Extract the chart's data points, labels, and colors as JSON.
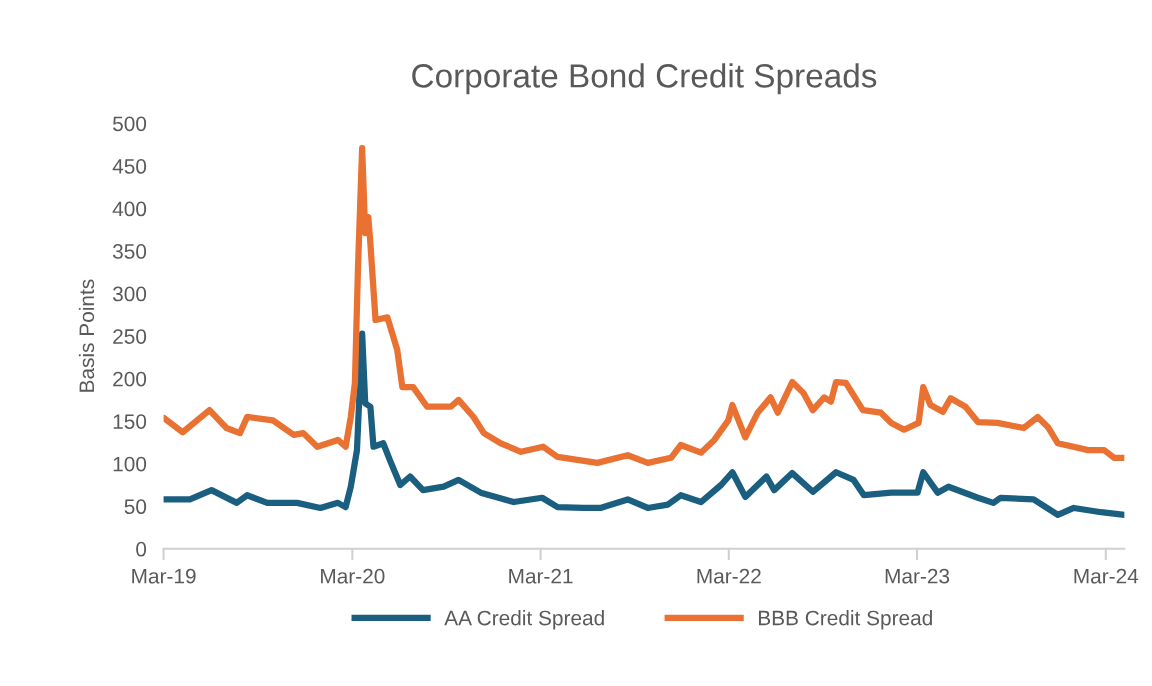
{
  "chart_data": {
    "type": "line",
    "title": "Corporate Bond Credit Spreads",
    "ylabel": "Basis Points",
    "xlim": [
      "2019-03-01",
      "2024-04-06"
    ],
    "ylim": [
      0,
      500
    ],
    "xticks": [
      {
        "value": "2019-03-01",
        "label": "Mar-19"
      },
      {
        "value": "2020-03-01",
        "label": "Mar-20"
      },
      {
        "value": "2021-03-01",
        "label": "Mar-21"
      },
      {
        "value": "2022-03-01",
        "label": "Mar-22"
      },
      {
        "value": "2023-03-01",
        "label": "Mar-23"
      },
      {
        "value": "2024-03-01",
        "label": "Mar-24"
      }
    ],
    "yticks": [
      0,
      50,
      100,
      150,
      200,
      250,
      300,
      350,
      400,
      450,
      500
    ],
    "grid": false,
    "legend": "bottom",
    "marker": "none",
    "line_style": "solid",
    "series": [
      {
        "name": "AA Credit Spread",
        "color": "#1a5e80",
        "x": [
          "2019-03-01",
          "2019-04-21",
          "2019-06-02",
          "2019-07-21",
          "2019-08-10",
          "2019-09-18",
          "2019-11-15",
          "2019-12-30",
          "2020-02-02",
          "2020-02-17",
          "2020-02-27",
          "2020-03-10",
          "2020-03-20",
          "2020-03-26",
          "2020-04-05",
          "2020-04-11",
          "2020-04-30",
          "2020-05-13",
          "2020-06-02",
          "2020-06-21",
          "2020-07-16",
          "2020-08-25",
          "2020-09-23",
          "2020-11-05",
          "2021-01-08",
          "2021-03-04",
          "2021-04-03",
          "2021-05-23",
          "2021-06-25",
          "2021-08-17",
          "2021-09-25",
          "2021-11-03",
          "2021-11-28",
          "2022-01-06",
          "2022-02-14",
          "2022-03-08",
          "2022-04-02",
          "2022-05-13",
          "2022-05-28",
          "2022-07-02",
          "2022-08-11",
          "2022-09-25",
          "2022-10-29",
          "2022-11-18",
          "2023-01-10",
          "2023-03-02",
          "2023-03-13",
          "2023-04-10",
          "2023-05-01",
          "2023-06-27",
          "2023-07-27",
          "2023-08-10",
          "2023-10-13",
          "2023-11-29",
          "2023-12-30",
          "2024-02-21",
          "2024-04-06"
        ],
        "values": [
          58,
          58,
          69,
          54,
          63,
          54,
          54,
          48,
          54,
          49,
          73,
          116,
          253,
          171,
          167,
          120,
          124,
          104,
          75,
          85,
          69,
          73,
          81,
          66,
          55,
          60,
          49,
          48,
          48,
          58,
          48,
          52,
          63,
          55,
          75,
          90,
          61,
          85,
          69,
          89,
          67,
          90,
          81,
          63,
          66,
          66,
          90,
          66,
          73,
          60,
          54,
          60,
          58,
          40,
          48,
          43,
          40
        ]
      },
      {
        "name": "BBB Credit Spread",
        "color": "#e97132",
        "x": [
          "2019-03-01",
          "2019-04-07",
          "2019-05-29",
          "2019-07-01",
          "2019-07-27",
          "2019-08-10",
          "2019-09-29",
          "2019-11-08",
          "2019-11-27",
          "2019-12-24",
          "2020-02-02",
          "2020-02-17",
          "2020-02-27",
          "2020-03-06",
          "2020-03-12",
          "2020-03-20",
          "2020-03-26",
          "2020-04-01",
          "2020-04-05",
          "2020-04-15",
          "2020-05-08",
          "2020-05-27",
          "2020-06-06",
          "2020-06-27",
          "2020-07-24",
          "2020-09-08",
          "2020-09-23",
          "2020-10-22",
          "2020-11-11",
          "2020-12-14",
          "2021-01-22",
          "2021-03-06",
          "2021-04-03",
          "2021-06-19",
          "2021-08-17",
          "2021-09-25",
          "2021-11-09",
          "2021-11-28",
          "2022-01-06",
          "2022-02-01",
          "2022-02-28",
          "2022-03-08",
          "2022-04-02",
          "2022-04-26",
          "2022-05-21",
          "2022-06-04",
          "2022-07-02",
          "2022-07-24",
          "2022-08-11",
          "2022-09-02",
          "2022-09-15",
          "2022-09-25",
          "2022-10-14",
          "2022-11-16",
          "2022-12-21",
          "2023-01-10",
          "2023-02-04",
          "2023-03-04",
          "2023-03-13",
          "2023-03-27",
          "2023-04-20",
          "2023-05-05",
          "2023-06-03",
          "2023-06-27",
          "2023-08-04",
          "2023-09-24",
          "2023-10-21",
          "2023-11-10",
          "2023-11-29",
          "2024-01-27",
          "2024-02-27",
          "2024-03-17",
          "2024-04-06"
        ],
        "values": [
          154,
          137,
          163,
          142,
          136,
          155,
          151,
          134,
          136,
          120,
          128,
          120,
          155,
          195,
          331,
          471,
          371,
          390,
          359,
          269,
          272,
          234,
          190,
          190,
          167,
          167,
          175,
          155,
          136,
          124,
          114,
          120,
          108,
          101,
          110,
          101,
          107,
          122,
          113,
          128,
          151,
          169,
          131,
          160,
          178,
          160,
          196,
          183,
          163,
          178,
          173,
          196,
          195,
          163,
          160,
          148,
          140,
          148,
          190,
          169,
          161,
          177,
          167,
          149,
          148,
          142,
          155,
          143,
          124,
          116,
          116,
          107,
          107
        ]
      }
    ]
  }
}
